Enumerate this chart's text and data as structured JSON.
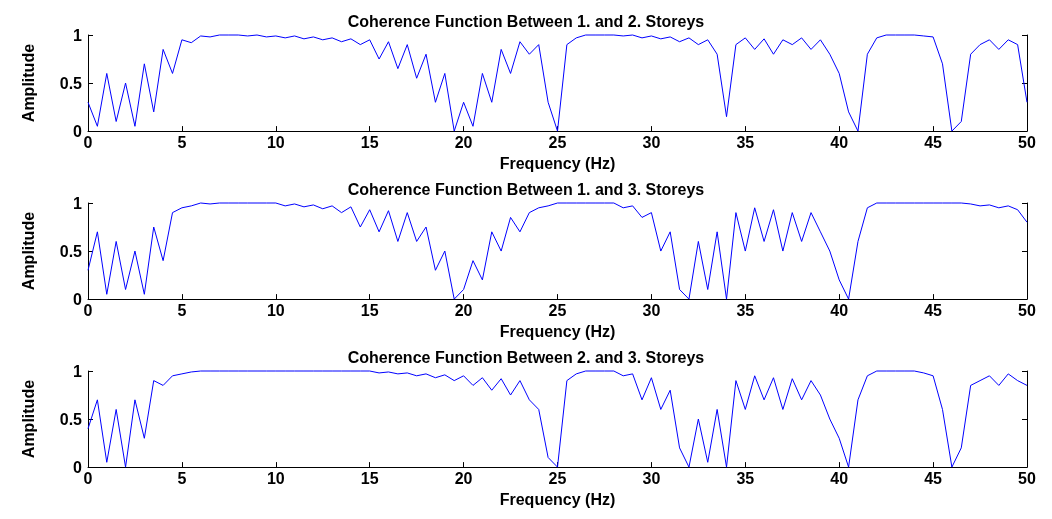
{
  "chart_data": [
    {
      "type": "line",
      "title": "Coherence Function Between 1. and 2. Storeys",
      "xlabel": "Frequency (Hz)",
      "ylabel": "Amplitude",
      "x": [
        0,
        0.5,
        1,
        1.5,
        2,
        2.5,
        3,
        3.5,
        4,
        4.5,
        5,
        5.5,
        6,
        6.5,
        7,
        7.5,
        8,
        8.5,
        9,
        9.5,
        10,
        10.5,
        11,
        11.5,
        12,
        12.5,
        13,
        13.5,
        14,
        14.5,
        15,
        15.5,
        16,
        16.5,
        17,
        17.5,
        18,
        18.5,
        19,
        19.5,
        20,
        20.5,
        21,
        21.5,
        22,
        22.5,
        23,
        23.5,
        24,
        24.5,
        25,
        25.5,
        26,
        26.5,
        27,
        27.5,
        28,
        28.5,
        29,
        29.5,
        30,
        30.5,
        31,
        31.5,
        32,
        32.5,
        33,
        33.5,
        34,
        34.5,
        35,
        35.5,
        36,
        36.5,
        37,
        37.5,
        38,
        38.5,
        39,
        39.5,
        40,
        40.5,
        41,
        41.5,
        42,
        42.5,
        43,
        43.5,
        44,
        44.5,
        45,
        45.5,
        46,
        46.5,
        47,
        47.5,
        48,
        48.5,
        49,
        49.5,
        50
      ],
      "series": [
        {
          "color": "#0000ff",
          "values": [
            0.3,
            0.05,
            0.6,
            0.1,
            0.5,
            0.05,
            0.7,
            0.2,
            0.85,
            0.6,
            0.95,
            0.92,
            0.99,
            0.98,
            1,
            1,
            1,
            0.99,
            1,
            0.98,
            0.99,
            0.97,
            0.99,
            0.96,
            0.98,
            0.95,
            0.97,
            0.93,
            0.96,
            0.9,
            0.95,
            0.75,
            0.93,
            0.65,
            0.9,
            0.55,
            0.8,
            0.3,
            0.6,
            0,
            0.3,
            0.05,
            0.6,
            0.3,
            0.85,
            0.6,
            0.93,
            0.8,
            0.9,
            0.3,
            0,
            0.9,
            0.97,
            1,
            1,
            1,
            1,
            0.99,
            1,
            0.97,
            0.99,
            0.96,
            0.98,
            0.93,
            0.97,
            0.9,
            0.95,
            0.8,
            0.15,
            0.9,
            0.97,
            0.85,
            0.96,
            0.8,
            0.95,
            0.9,
            0.97,
            0.85,
            0.95,
            0.8,
            0.6,
            0.2,
            0,
            0.8,
            0.97,
            1,
            1,
            1,
            1,
            0.99,
            0.98,
            0.7,
            0,
            0.1,
            0.8,
            0.9,
            0.95,
            0.85,
            0.95,
            0.9,
            0.3
          ]
        }
      ],
      "xlim": [
        0,
        50
      ],
      "xticks": [
        0,
        5,
        10,
        15,
        20,
        25,
        30,
        35,
        40,
        45,
        50
      ],
      "ylim": [
        0,
        1
      ],
      "yticks": [
        0,
        0.5,
        1
      ]
    },
    {
      "type": "line",
      "title": "Coherence Function Between 1. and 3. Storeys",
      "xlabel": "Frequency (Hz)",
      "ylabel": "Amplitude",
      "x": [
        0,
        0.5,
        1,
        1.5,
        2,
        2.5,
        3,
        3.5,
        4,
        4.5,
        5,
        5.5,
        6,
        6.5,
        7,
        7.5,
        8,
        8.5,
        9,
        9.5,
        10,
        10.5,
        11,
        11.5,
        12,
        12.5,
        13,
        13.5,
        14,
        14.5,
        15,
        15.5,
        16,
        16.5,
        17,
        17.5,
        18,
        18.5,
        19,
        19.5,
        20,
        20.5,
        21,
        21.5,
        22,
        22.5,
        23,
        23.5,
        24,
        24.5,
        25,
        25.5,
        26,
        26.5,
        27,
        27.5,
        28,
        28.5,
        29,
        29.5,
        30,
        30.5,
        31,
        31.5,
        32,
        32.5,
        33,
        33.5,
        34,
        34.5,
        35,
        35.5,
        36,
        36.5,
        37,
        37.5,
        38,
        38.5,
        39,
        39.5,
        40,
        40.5,
        41,
        41.5,
        42,
        42.5,
        43,
        43.5,
        44,
        44.5,
        45,
        45.5,
        46,
        46.5,
        47,
        47.5,
        48,
        48.5,
        49,
        49.5,
        50
      ],
      "series": [
        {
          "color": "#0000ff",
          "values": [
            0.3,
            0.7,
            0.05,
            0.6,
            0.1,
            0.5,
            0.05,
            0.75,
            0.4,
            0.9,
            0.95,
            0.97,
            1,
            0.99,
            1,
            1,
            1,
            1,
            1,
            1,
            1,
            0.97,
            0.99,
            0.96,
            0.98,
            0.94,
            0.97,
            0.9,
            0.96,
            0.75,
            0.93,
            0.7,
            0.92,
            0.6,
            0.9,
            0.6,
            0.75,
            0.3,
            0.5,
            0,
            0.1,
            0.4,
            0.2,
            0.7,
            0.5,
            0.85,
            0.7,
            0.9,
            0.95,
            0.97,
            1,
            1,
            1,
            1,
            1,
            1,
            1,
            0.95,
            0.97,
            0.85,
            0.9,
            0.5,
            0.7,
            0.1,
            0,
            0.6,
            0.1,
            0.7,
            0,
            0.9,
            0.5,
            0.95,
            0.6,
            0.93,
            0.5,
            0.9,
            0.6,
            0.9,
            0.7,
            0.5,
            0.2,
            0,
            0.6,
            0.95,
            1,
            1,
            1,
            1,
            1,
            1,
            1,
            1,
            1,
            1,
            0.99,
            0.97,
            0.98,
            0.95,
            0.97,
            0.93,
            0.8
          ]
        }
      ],
      "xlim": [
        0,
        50
      ],
      "xticks": [
        0,
        5,
        10,
        15,
        20,
        25,
        30,
        35,
        40,
        45,
        50
      ],
      "ylim": [
        0,
        1
      ],
      "yticks": [
        0,
        0.5,
        1
      ]
    },
    {
      "type": "line",
      "title": "Coherence Function Between 2. and 3. Storeys",
      "xlabel": "Frequency (Hz)",
      "ylabel": "Amplitude",
      "x": [
        0,
        0.5,
        1,
        1.5,
        2,
        2.5,
        3,
        3.5,
        4,
        4.5,
        5,
        5.5,
        6,
        6.5,
        7,
        7.5,
        8,
        8.5,
        9,
        9.5,
        10,
        10.5,
        11,
        11.5,
        12,
        12.5,
        13,
        13.5,
        14,
        14.5,
        15,
        15.5,
        16,
        16.5,
        17,
        17.5,
        18,
        18.5,
        19,
        19.5,
        20,
        20.5,
        21,
        21.5,
        22,
        22.5,
        23,
        23.5,
        24,
        24.5,
        25,
        25.5,
        26,
        26.5,
        27,
        27.5,
        28,
        28.5,
        29,
        29.5,
        30,
        30.5,
        31,
        31.5,
        32,
        32.5,
        33,
        33.5,
        34,
        34.5,
        35,
        35.5,
        36,
        36.5,
        37,
        37.5,
        38,
        38.5,
        39,
        39.5,
        40,
        40.5,
        41,
        41.5,
        42,
        42.5,
        43,
        43.5,
        44,
        44.5,
        45,
        45.5,
        46,
        46.5,
        47,
        47.5,
        48,
        48.5,
        49,
        49.5,
        50
      ],
      "series": [
        {
          "color": "#0000ff",
          "values": [
            0.4,
            0.7,
            0.05,
            0.6,
            0,
            0.7,
            0.3,
            0.9,
            0.85,
            0.95,
            0.97,
            0.99,
            1,
            1,
            1,
            1,
            1,
            1,
            1,
            1,
            1,
            1,
            1,
            1,
            1,
            1,
            1,
            1,
            1,
            1,
            1,
            0.98,
            0.99,
            0.97,
            0.98,
            0.95,
            0.97,
            0.93,
            0.96,
            0.9,
            0.95,
            0.85,
            0.93,
            0.8,
            0.92,
            0.75,
            0.9,
            0.7,
            0.6,
            0.1,
            0,
            0.9,
            0.97,
            1,
            1,
            1,
            1,
            0.95,
            0.97,
            0.7,
            0.93,
            0.6,
            0.8,
            0.2,
            0,
            0.5,
            0.05,
            0.6,
            0,
            0.9,
            0.6,
            0.95,
            0.7,
            0.93,
            0.6,
            0.92,
            0.7,
            0.9,
            0.75,
            0.5,
            0.3,
            0,
            0.7,
            0.95,
            1,
            1,
            1,
            1,
            1,
            0.98,
            0.95,
            0.6,
            0,
            0.2,
            0.85,
            0.9,
            0.95,
            0.85,
            0.97,
            0.9,
            0.85
          ]
        }
      ],
      "xlim": [
        0,
        50
      ],
      "xticks": [
        0,
        5,
        10,
        15,
        20,
        25,
        30,
        35,
        40,
        45,
        50
      ],
      "ylim": [
        0,
        1
      ],
      "yticks": [
        0,
        0.5,
        1
      ]
    }
  ]
}
